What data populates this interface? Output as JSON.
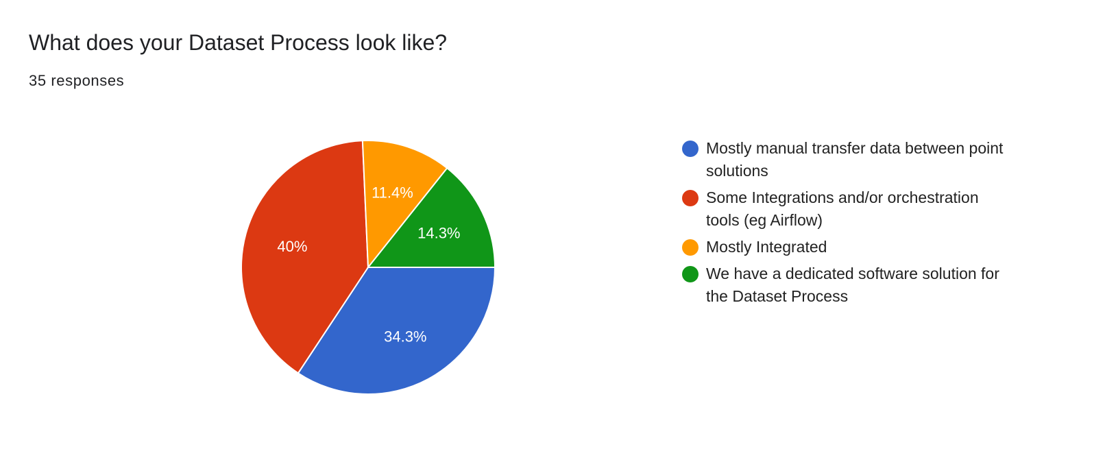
{
  "header": {
    "title": "What does your Dataset Process look like?",
    "responses": "35 responses"
  },
  "chart_data": {
    "type": "pie",
    "title": "What does your Dataset Process look like?",
    "subtitle": "35 responses",
    "legend_position": "right",
    "slices": [
      {
        "name": "Mostly manual transfer data between point solutions",
        "value": 34.3,
        "label": "34.3%",
        "color": "#3366cc"
      },
      {
        "name": "Some Integrations and/or orchestration tools (eg Airflow)",
        "value": 40,
        "label": "40%",
        "color": "#dc3912"
      },
      {
        "name": "Mostly Integrated",
        "value": 11.4,
        "label": "11.4%",
        "color": "#ff9900"
      },
      {
        "name": "We have a dedicated software solution for the Dataset Process",
        "value": 14.3,
        "label": "14.3%",
        "color": "#109618"
      }
    ]
  }
}
